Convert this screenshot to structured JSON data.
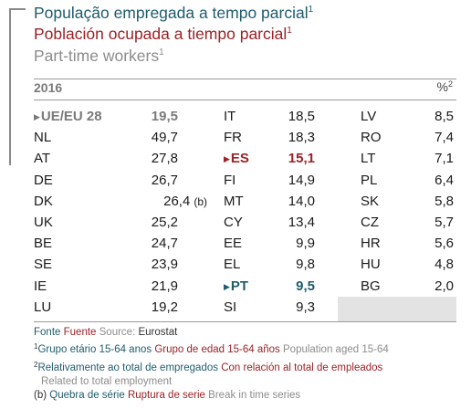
{
  "titles": {
    "pt": "População empregada a tempo parcial",
    "es": "Población ocupada a tiempo parcial",
    "en": "Part-time workers",
    "sup": "1"
  },
  "header": {
    "year": "2016",
    "unit": "%",
    "unit_sup": "2"
  },
  "rows": [
    [
      {
        "c": "UE/EU 28",
        "v": "19,5"
      },
      {
        "c": "IT",
        "v": "18,5"
      },
      {
        "c": "LV",
        "v": "8,5"
      }
    ],
    [
      {
        "c": "NL",
        "v": "49,7"
      },
      {
        "c": "FR",
        "v": "18,3"
      },
      {
        "c": "RO",
        "v": "7,4"
      }
    ],
    [
      {
        "c": "AT",
        "v": "27,8"
      },
      {
        "c": "ES",
        "v": "15,1"
      },
      {
        "c": "LT",
        "v": "7,1"
      }
    ],
    [
      {
        "c": "DE",
        "v": "26,7"
      },
      {
        "c": "FI",
        "v": "14,9"
      },
      {
        "c": "PL",
        "v": "6,4"
      }
    ],
    [
      {
        "c": "DK",
        "v": "26,4",
        "b": "(b)"
      },
      {
        "c": "MT",
        "v": "14,0"
      },
      {
        "c": "SK",
        "v": "5,8"
      }
    ],
    [
      {
        "c": "UK",
        "v": "25,2"
      },
      {
        "c": "CY",
        "v": "13,4"
      },
      {
        "c": "CZ",
        "v": "5,7"
      }
    ],
    [
      {
        "c": "BE",
        "v": "24,7"
      },
      {
        "c": "EE",
        "v": "9,9"
      },
      {
        "c": "HR",
        "v": "5,6"
      }
    ],
    [
      {
        "c": "SE",
        "v": "23,9"
      },
      {
        "c": "EL",
        "v": "9,8"
      },
      {
        "c": "HU",
        "v": "4,8"
      }
    ],
    [
      {
        "c": "IE",
        "v": "21,9"
      },
      {
        "c": "PT",
        "v": "9,5"
      },
      {
        "c": "BG",
        "v": "2,0"
      }
    ],
    [
      {
        "c": "LU",
        "v": "19,2"
      },
      {
        "c": "SI",
        "v": "9,3"
      },
      {
        "c": "",
        "v": ""
      }
    ]
  ],
  "notes": {
    "source_pt": "Fonte",
    "source_es": "Fuente",
    "source_en": "Source:",
    "source_val": "Eurostat",
    "n1_sup": "1",
    "n1_pt": "Grupo etário 15-64 anos",
    "n1_es": "Grupo de edad 15-64 años",
    "n1_en": "Population aged 15-64",
    "n2_sup": "2",
    "n2_pt": "Relativamente ao total de empregados",
    "n2_es": "Con relación al total de empleados",
    "n2_en": "Related to total employment",
    "b_label": "(b)",
    "b_pt": "Quebra de série",
    "b_es": "Ruptura de serie",
    "b_en": "Break in time series"
  }
}
